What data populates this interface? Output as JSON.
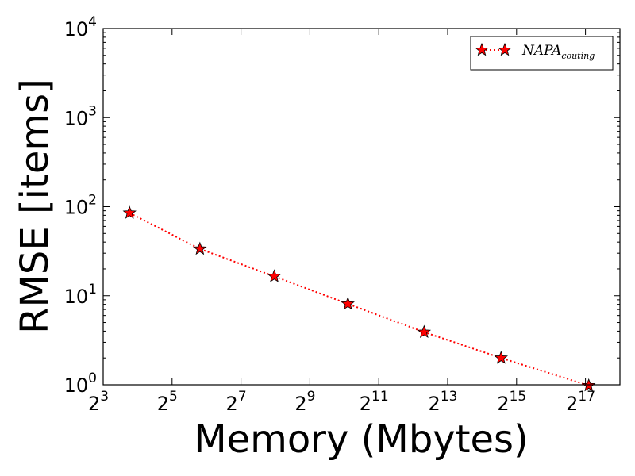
{
  "chart_data": {
    "type": "line",
    "title": "",
    "xlabel": "Memory (Mbytes)",
    "ylabel": "RMSE [items]",
    "x_scale": "log2",
    "y_scale": "log10",
    "xlim": [
      8,
      262144
    ],
    "ylim": [
      1,
      10000
    ],
    "x_ticks": [
      {
        "base": "2",
        "exp": "3",
        "value": 8
      },
      {
        "base": "2",
        "exp": "5",
        "value": 32
      },
      {
        "base": "2",
        "exp": "7",
        "value": 128
      },
      {
        "base": "2",
        "exp": "9",
        "value": 512
      },
      {
        "base": "2",
        "exp": "11",
        "value": 2048
      },
      {
        "base": "2",
        "exp": "13",
        "value": 8192
      },
      {
        "base": "2",
        "exp": "15",
        "value": 32768
      },
      {
        "base": "2",
        "exp": "17",
        "value": 131072
      }
    ],
    "y_ticks": [
      {
        "base": "10",
        "exp": "0",
        "value": 1
      },
      {
        "base": "10",
        "exp": "1",
        "value": 10
      },
      {
        "base": "10",
        "exp": "2",
        "value": 100
      },
      {
        "base": "10",
        "exp": "3",
        "value": 1000
      },
      {
        "base": "10",
        "exp": "4",
        "value": 10000
      }
    ],
    "grid": false,
    "legend_position": "top-right",
    "series": [
      {
        "name": "NAPA",
        "name_subscript": "couting",
        "color": "#ff0000",
        "marker": "star",
        "line_style": "dotted",
        "points": [
          {
            "x": 13.6,
            "y": 85
          },
          {
            "x": 56,
            "y": 33.5
          },
          {
            "x": 250,
            "y": 16.5
          },
          {
            "x": 1100,
            "y": 8.1
          },
          {
            "x": 5100,
            "y": 3.9
          },
          {
            "x": 24000,
            "y": 2.0
          },
          {
            "x": 140000,
            "y": 0.98
          }
        ]
      }
    ]
  }
}
